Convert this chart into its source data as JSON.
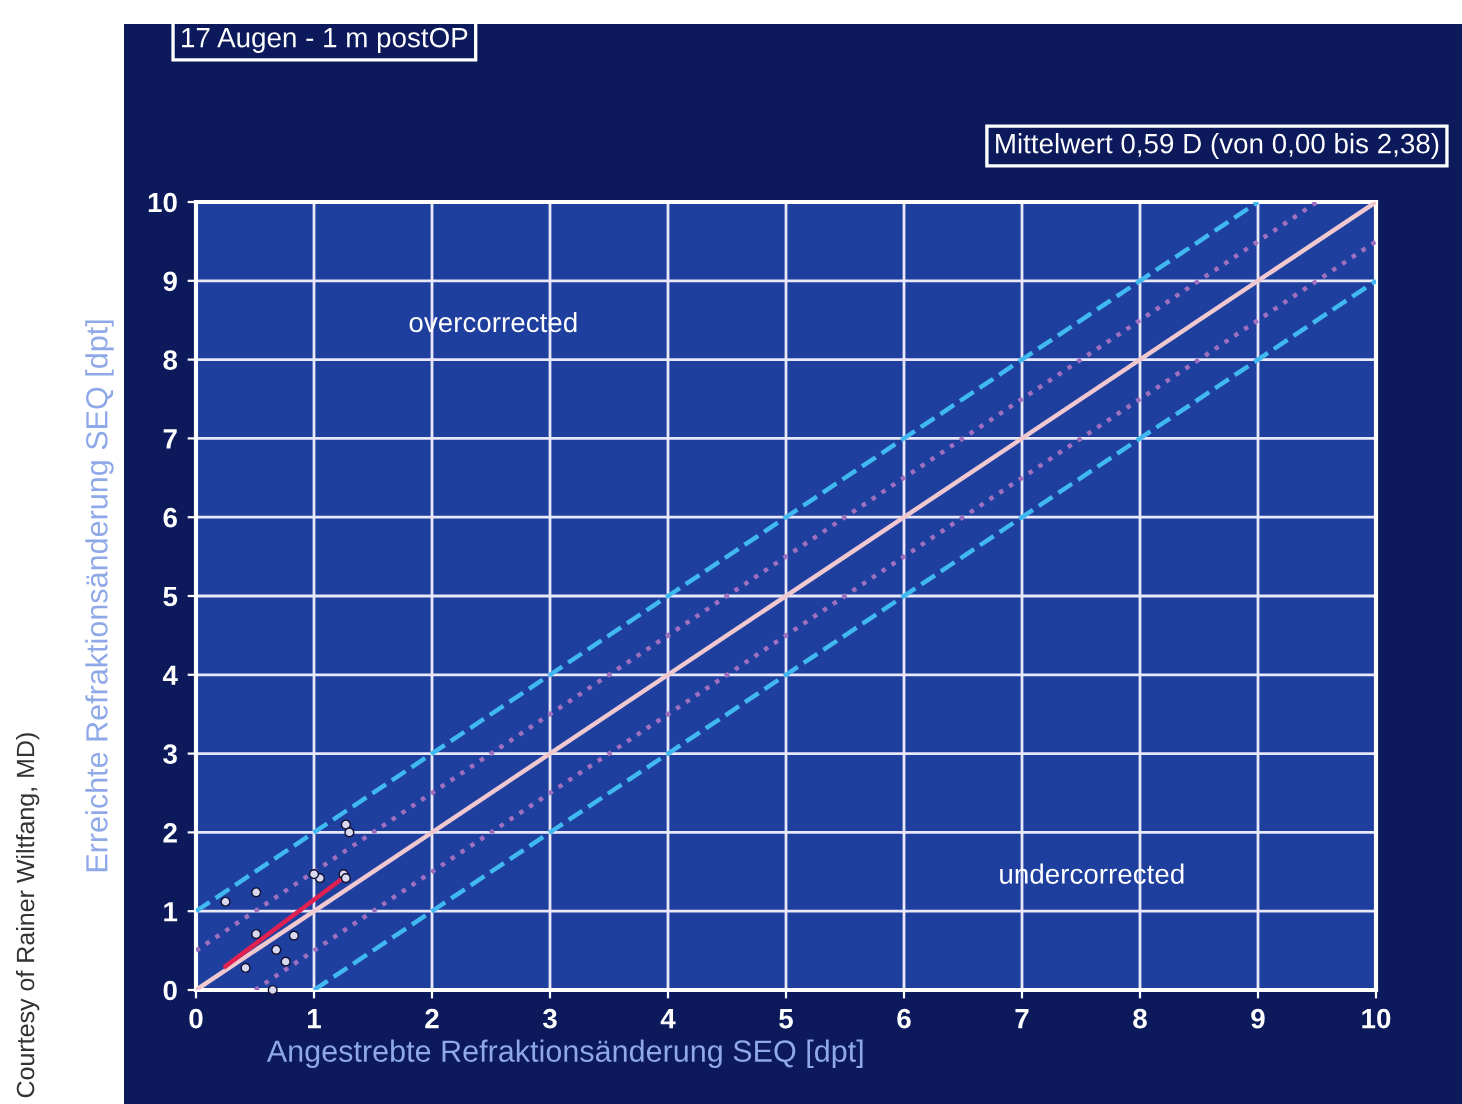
{
  "chart_data": {
    "type": "scatter",
    "title": "17 Augen - 1 m postOP",
    "subtitle": "Mittelwert 0,59 D (von 0,00 bis 2,38)",
    "xlabel": "Angestrebte Refraktionsänderung SEQ [dpt]",
    "ylabel": "Erreichte Refraktionsänderung SEQ [dpt]",
    "xlim": [
      0,
      10
    ],
    "ylim": [
      0,
      10
    ],
    "xticks": [
      0,
      1,
      2,
      3,
      4,
      5,
      6,
      7,
      8,
      9,
      10
    ],
    "yticks": [
      0,
      1,
      2,
      3,
      4,
      5,
      6,
      7,
      8,
      9,
      10
    ],
    "grid": true,
    "series": [
      {
        "marker": "circle",
        "color": "#d8d8f0",
        "x": [
          0.25,
          0.51,
          0.51,
          0.42,
          0.68,
          0.76,
          0.83,
          1.05,
          1.0,
          1.25,
          1.27,
          1.27,
          1.3,
          0.65
        ],
        "values": [
          1.12,
          1.24,
          0.71,
          0.28,
          0.51,
          0.36,
          0.69,
          1.42,
          1.47,
          1.47,
          1.42,
          2.1,
          2.0,
          0.0
        ]
      },
      {
        "type": "line",
        "color": "#f0c8d0",
        "line_style": "solid",
        "x": [
          0,
          10
        ],
        "values": [
          0,
          10
        ]
      },
      {
        "type": "line",
        "color": "#40b8f0",
        "line_style": "dashed",
        "x": [
          0,
          9
        ],
        "values": [
          1,
          10
        ]
      },
      {
        "type": "line",
        "color": "#40b8f0",
        "line_style": "dashed",
        "x": [
          1,
          10
        ],
        "values": [
          0,
          9
        ]
      },
      {
        "type": "line",
        "color": "#a070c0",
        "line_style": "dotted",
        "x": [
          0,
          9.5
        ],
        "values": [
          0.5,
          10
        ]
      },
      {
        "type": "line",
        "color": "#a070c0",
        "line_style": "dotted",
        "x": [
          0.5,
          10
        ],
        "values": [
          0,
          9.5
        ]
      },
      {
        "type": "line",
        "color": "#e02050",
        "line_style": "solid",
        "x": [
          0.25,
          1.27
        ],
        "values": [
          0.3,
          1.45
        ]
      }
    ],
    "annotations": [
      "overcorrected",
      "undercorrected",
      "Courtesy of Rainer Wiltfang, MD)"
    ]
  }
}
